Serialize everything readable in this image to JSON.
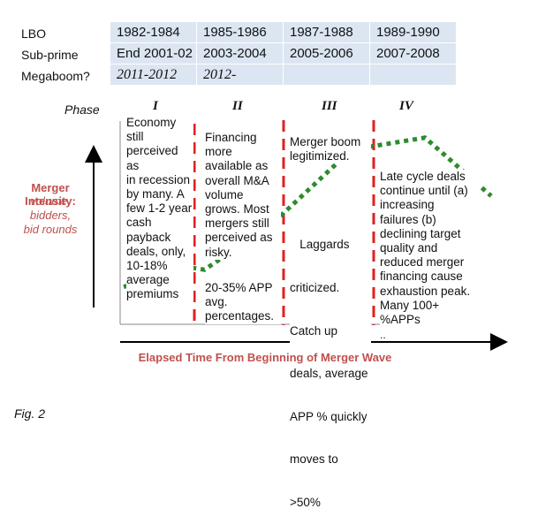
{
  "rows": [
    {
      "label": "LBO",
      "cells": [
        "1982-1984",
        "1985-1986",
        "1987-1988",
        "1989-1990"
      ]
    },
    {
      "label": "Sub-prime",
      "cells": [
        "End 2001-02",
        "2003-2004",
        "2005-2006",
        "2007-2008"
      ]
    },
    {
      "label": "Megaboom?",
      "cells": [
        "2011-2012",
        "2012-",
        "",
        ""
      ]
    }
  ],
  "phase_label": "Phase",
  "phases": [
    "I",
    "II",
    "III",
    "IV"
  ],
  "y_axis": {
    "title": "Merger Intensity:",
    "subtitle_lines": [
      "volume,",
      "bidders,",
      "bid rounds"
    ]
  },
  "x_axis": {
    "label": "Elapsed Time From Beginning of Merger Wave"
  },
  "columns": [
    {
      "lines": [
        "Economy",
        "still",
        "perceived as",
        "in recession",
        "by many. A",
        "few 1-2 year",
        "cash",
        "payback",
        "deals, only,",
        "10-18%",
        "average",
        "premiums"
      ]
    },
    {
      "lines": [
        "Financing",
        "more",
        "available as",
        "overall M&A",
        "volume",
        "grows. Most",
        "mergers still",
        "perceived as",
        "risky."
      ],
      "lines2": [
        "20-35% APP",
        "avg.",
        "percentages."
      ]
    },
    {
      "lines": [
        "Merger boom",
        "legitimized."
      ],
      "lines2": [
        "   Laggards",
        "criticized.",
        "Catch up",
        "deals, average",
        "APP % quickly",
        "moves to",
        ">50%"
      ]
    },
    {
      "lines": [
        "Late cycle deals",
        "continue until (a)",
        "increasing",
        "failures (b)",
        "declining target",
        "quality and",
        "reduced merger",
        "financing cause",
        "exhaustion peak.",
        "Many 100+",
        "%APPs"
      ],
      "trailing": ".."
    }
  ],
  "intensity_curve": [
    {
      "t": 0.0,
      "intensity": 0.1
    },
    {
      "t": 0.19,
      "intensity": 0.21
    },
    {
      "t": 0.22,
      "intensity": 0.2
    },
    {
      "t": 0.4,
      "intensity": 0.46
    },
    {
      "t": 0.62,
      "intensity": 0.9
    },
    {
      "t": 0.82,
      "intensity": 0.97
    },
    {
      "t": 1.0,
      "intensity": 0.63
    }
  ],
  "colors": {
    "curve": "#2e8b2e",
    "divider": "#e02020",
    "accent": "#c0504d",
    "table_fill": "#dce6f2"
  },
  "figure_label": "Fig. 2"
}
